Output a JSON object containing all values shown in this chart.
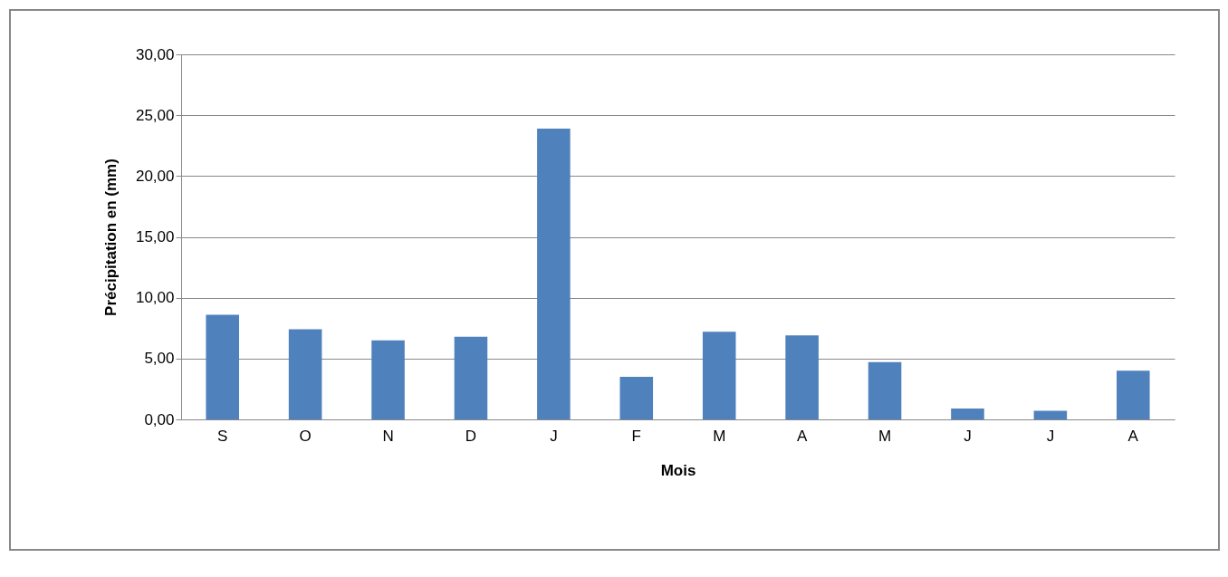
{
  "chart_data": {
    "type": "bar",
    "xlabel": "Mois",
    "ylabel": "Précipitation  en (mm)",
    "categories": [
      "S",
      "O",
      "N",
      "D",
      "J",
      "F",
      "M",
      "A",
      "M",
      "J",
      "J",
      "A"
    ],
    "values": [
      8.6,
      7.4,
      6.5,
      6.8,
      23.9,
      3.5,
      7.2,
      6.9,
      4.7,
      0.9,
      0.7,
      4.0
    ],
    "color": "#4f81bd",
    "ylim": [
      0,
      30
    ],
    "yticks": [
      {
        "value": 0,
        "label": "0,00"
      },
      {
        "value": 5,
        "label": "5,00"
      },
      {
        "value": 10,
        "label": "10,00"
      },
      {
        "value": 15,
        "label": "15,00"
      },
      {
        "value": 20,
        "label": "20,00"
      },
      {
        "value": 25,
        "label": "25,00"
      },
      {
        "value": 30,
        "label": "30,00"
      }
    ],
    "grid": "y"
  }
}
